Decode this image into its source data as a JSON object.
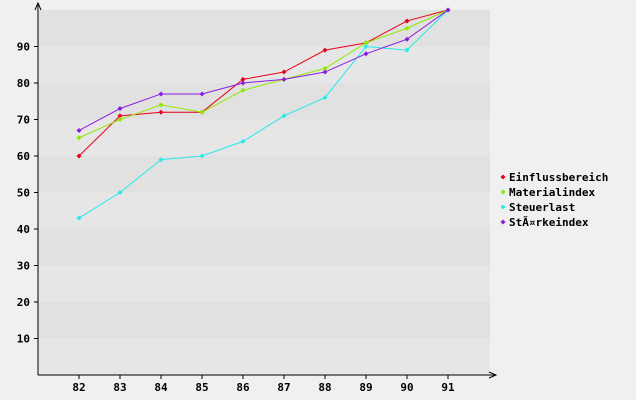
{
  "chart_data": {
    "type": "line",
    "x": [
      "82",
      "83",
      "84",
      "85",
      "86",
      "87",
      "88",
      "89",
      "90",
      "91"
    ],
    "ylim": [
      0,
      100
    ],
    "yticks": [
      10,
      20,
      30,
      40,
      50,
      60,
      70,
      80,
      90
    ],
    "grid": "horizontal bands",
    "legend_position": "right",
    "series": [
      {
        "name": "Einflussbereich",
        "color": "#e8001c",
        "values": [
          60,
          71,
          72,
          72,
          81,
          83,
          89,
          91,
          97,
          100
        ]
      },
      {
        "name": "Materialindex",
        "color": "#90e800",
        "values": [
          65,
          70,
          74,
          72,
          78,
          81,
          84,
          91,
          95,
          100
        ]
      },
      {
        "name": "Steuerlast",
        "color": "#28e8e8",
        "values": [
          43,
          50,
          59,
          60,
          64,
          71,
          76,
          90,
          89,
          100
        ]
      },
      {
        "name": "StÃ¤rkeindex",
        "color": "#8a1ce0",
        "values": [
          67,
          73,
          77,
          77,
          80,
          81,
          83,
          88,
          92,
          100
        ]
      }
    ]
  }
}
